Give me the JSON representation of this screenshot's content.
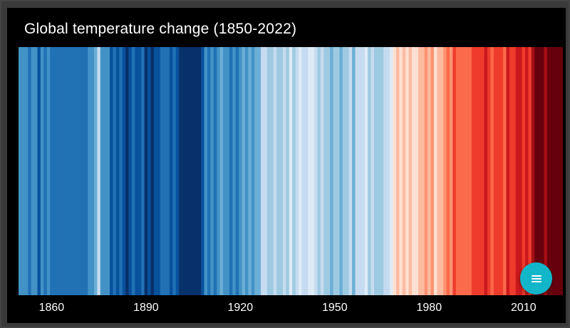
{
  "title": "Global temperature change (1850-2022)",
  "fab": {
    "icon": "menu-icon"
  },
  "colors": {
    "panel_background": "#000000",
    "fab": "#12b6c9",
    "scale": [
      "#08306b",
      "#08519c",
      "#2171b5",
      "#4292c6",
      "#6baed6",
      "#9ecae1",
      "#c6dbef",
      "#deebf7",
      "#fee0d2",
      "#fcbba1",
      "#fc9272",
      "#fb6a4a",
      "#ef3b2c",
      "#cb181d",
      "#a50f15",
      "#67000d"
    ]
  },
  "chart_data": {
    "type": "heatmap",
    "title": "Global temperature change (1850-2022)",
    "x_start": 1850,
    "x_end": 2022,
    "x_ticks": [
      "1860",
      "1890",
      "1920",
      "1950",
      "1980",
      "2010"
    ],
    "anomaly_level_range": [
      0,
      15
    ],
    "years": [
      1850,
      1851,
      1852,
      1853,
      1854,
      1855,
      1856,
      1857,
      1858,
      1859,
      1860,
      1861,
      1862,
      1863,
      1864,
      1865,
      1866,
      1867,
      1868,
      1869,
      1870,
      1871,
      1872,
      1873,
      1874,
      1875,
      1876,
      1877,
      1878,
      1879,
      1880,
      1881,
      1882,
      1883,
      1884,
      1885,
      1886,
      1887,
      1888,
      1889,
      1890,
      1891,
      1892,
      1893,
      1894,
      1895,
      1896,
      1897,
      1898,
      1899,
      1900,
      1901,
      1902,
      1903,
      1904,
      1905,
      1906,
      1907,
      1908,
      1909,
      1910,
      1911,
      1912,
      1913,
      1914,
      1915,
      1916,
      1917,
      1918,
      1919,
      1920,
      1921,
      1922,
      1923,
      1924,
      1925,
      1926,
      1927,
      1928,
      1929,
      1930,
      1931,
      1932,
      1933,
      1934,
      1935,
      1936,
      1937,
      1938,
      1939,
      1940,
      1941,
      1942,
      1943,
      1944,
      1945,
      1946,
      1947,
      1948,
      1949,
      1950,
      1951,
      1952,
      1953,
      1954,
      1955,
      1956,
      1957,
      1958,
      1959,
      1960,
      1961,
      1962,
      1963,
      1964,
      1965,
      1966,
      1967,
      1968,
      1969,
      1970,
      1971,
      1972,
      1973,
      1974,
      1975,
      1976,
      1977,
      1978,
      1979,
      1980,
      1981,
      1982,
      1983,
      1984,
      1985,
      1986,
      1987,
      1988,
      1989,
      1990,
      1991,
      1992,
      1993,
      1994,
      1995,
      1996,
      1997,
      1998,
      1999,
      2000,
      2001,
      2002,
      2003,
      2004,
      2005,
      2006,
      2007,
      2008,
      2009,
      2010,
      2011,
      2012,
      2013,
      2014,
      2015,
      2016,
      2017,
      2018,
      2019,
      2020,
      2021,
      2022
    ],
    "values": [
      3,
      3,
      3,
      2,
      3,
      3,
      1,
      3,
      2,
      3,
      2,
      2,
      2,
      2,
      2,
      2,
      2,
      2,
      2,
      2,
      2,
      2,
      3,
      3,
      4,
      6,
      3,
      3,
      3,
      1,
      2,
      1,
      2,
      1,
      0,
      1,
      2,
      1,
      1,
      2,
      0,
      1,
      0,
      1,
      1,
      2,
      2,
      2,
      1,
      2,
      1,
      0,
      0,
      0,
      0,
      0,
      0,
      0,
      1,
      3,
      2,
      3,
      2,
      3,
      4,
      3,
      3,
      2,
      3,
      2,
      3,
      4,
      3,
      4,
      3,
      4,
      4,
      6,
      6,
      5,
      5,
      6,
      5,
      5,
      6,
      5,
      7,
      5,
      6,
      7,
      6,
      6,
      7,
      7,
      6,
      5,
      6,
      5,
      5,
      4,
      5,
      5,
      4,
      5,
      5,
      6,
      4,
      6,
      6,
      6,
      7,
      5,
      6,
      5,
      5,
      5,
      6,
      6,
      7,
      8,
      9,
      8,
      9,
      8,
      9,
      8,
      8,
      9,
      9,
      10,
      9,
      10,
      8,
      9,
      9,
      10,
      11,
      10,
      12,
      11,
      11,
      11,
      11,
      11,
      12,
      12,
      12,
      12,
      13,
      12,
      11,
      12,
      12,
      12,
      11,
      13,
      12,
      12,
      13,
      13,
      12,
      13,
      12,
      14,
      15,
      15,
      15,
      14,
      15,
      15,
      15,
      15,
      15
    ]
  }
}
